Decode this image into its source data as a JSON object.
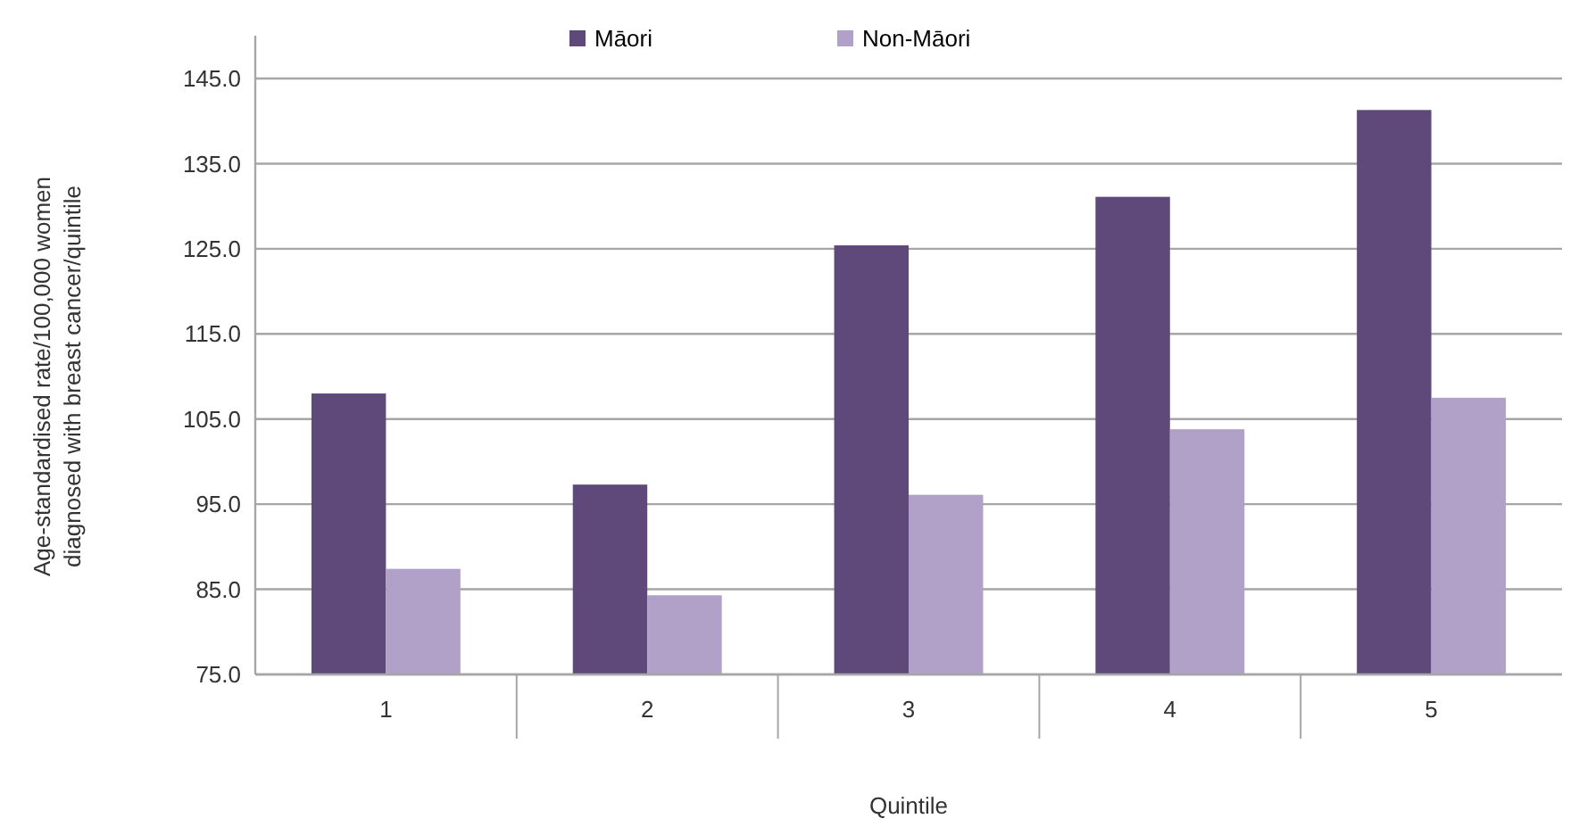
{
  "chart_data": {
    "type": "bar",
    "xlabel": "Quintile",
    "ylabel": "Age-standardised rate/100,000 women diagnosed with breast cancer/quintile",
    "categories": [
      "1",
      "2",
      "3",
      "4",
      "5"
    ],
    "series": [
      {
        "name": "Māori",
        "color": "#5f497a",
        "values": [
          108.0,
          97.3,
          125.4,
          131.1,
          141.3
        ]
      },
      {
        "name": "Non-Māori",
        "color": "#b1a0c7",
        "values": [
          87.4,
          84.3,
          96.1,
          103.8,
          107.5
        ]
      }
    ],
    "ylim": [
      75,
      145
    ],
    "yticks": [
      {
        "value": 75,
        "label": "75.0"
      },
      {
        "value": 85,
        "label": "85.0"
      },
      {
        "value": 95,
        "label": "95.0"
      },
      {
        "value": 105,
        "label": "105.0"
      },
      {
        "value": 115,
        "label": "115.0"
      },
      {
        "value": 125,
        "label": "125.0"
      },
      {
        "value": 135,
        "label": "135.0"
      },
      {
        "value": 145,
        "label": "145.0"
      }
    ],
    "grid": "y",
    "legend": "top"
  }
}
